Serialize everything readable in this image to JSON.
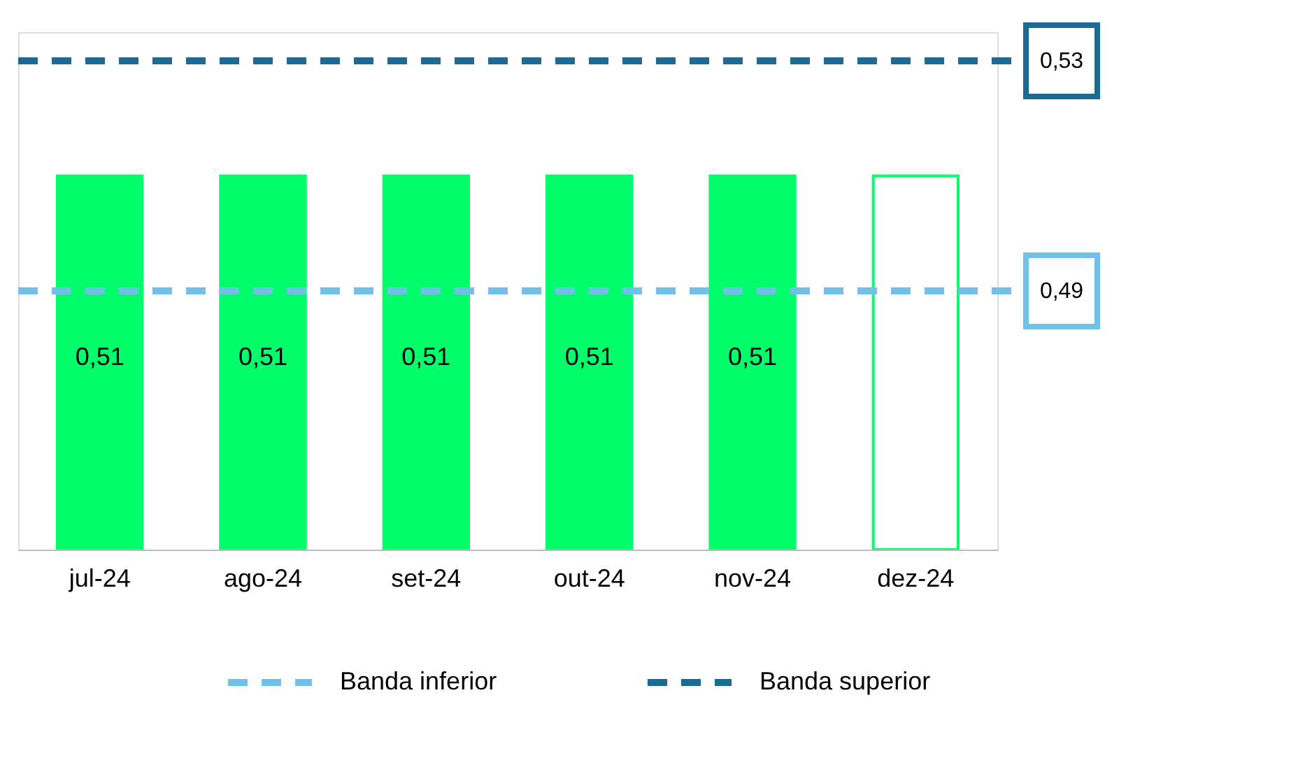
{
  "chart_data": {
    "type": "bar",
    "categories": [
      "jul-24",
      "ago-24",
      "set-24",
      "out-24",
      "nov-24",
      "dez-24"
    ],
    "ylim": [
      0.445,
      0.535
    ],
    "tick_labels": "x",
    "grid": false,
    "series": [
      {
        "values": [
          0.51,
          0.51,
          0.51,
          0.51,
          0.51,
          0.51
        ],
        "color": "#00ff6a",
        "colors": [
          "#00ff6a",
          "#00ff6a",
          "#00ff6a",
          "#00ff6a",
          "#00ff6a",
          "#ffffff"
        ],
        "value_labels": [
          "0,51",
          "0,51",
          "0,51",
          "0,51",
          "0,51",
          null
        ]
      }
    ],
    "ref_lines": [
      {
        "axis": "y",
        "value": 0.49,
        "label": "0,49",
        "color": "#70c1e8",
        "line_style": "dashed"
      },
      {
        "axis": "y",
        "value": 0.53,
        "label": "0,53",
        "color": "#1b6a93",
        "line_style": "dashed"
      }
    ],
    "annotations": [
      "Banda inferior",
      "Banda superior"
    ]
  }
}
